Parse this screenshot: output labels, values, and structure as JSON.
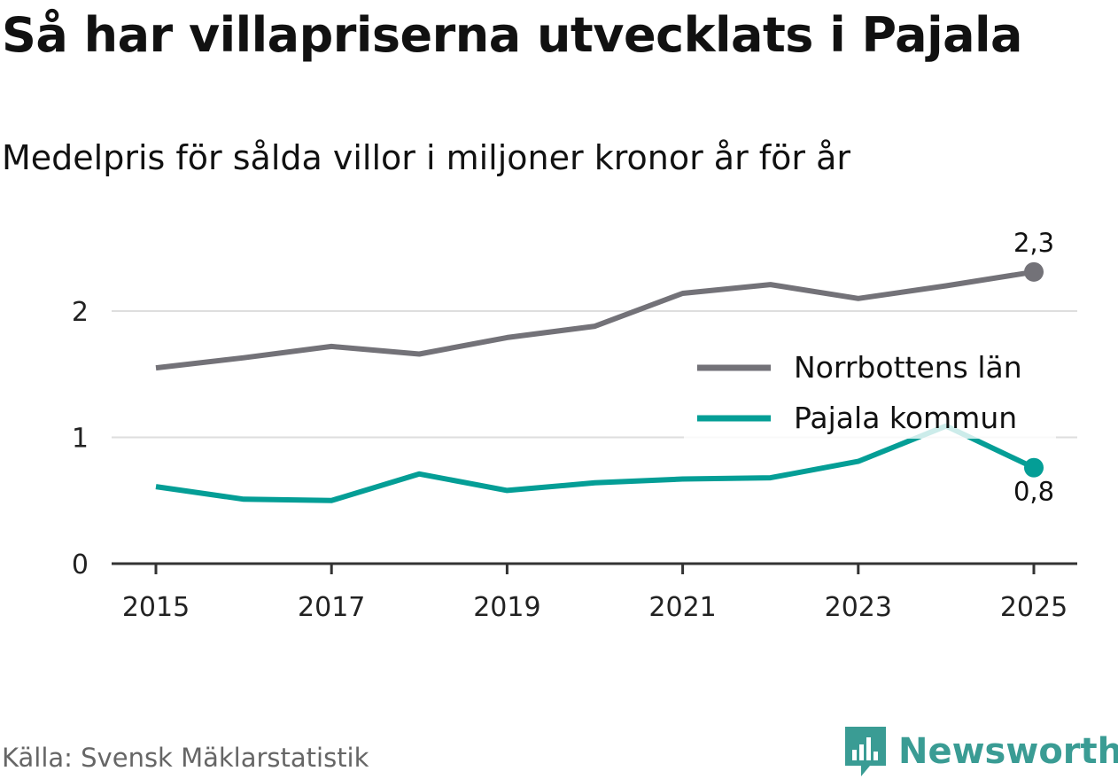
{
  "title": "Så har villapriserna utvecklats i Pajala",
  "subtitle": "Medelpris för sålda villor i miljoner kronor år för år",
  "source": "Källa: Svensk Mäklarstatistik",
  "brand": "Newsworthy",
  "colors": {
    "norrbotten": "#737278",
    "pajala": "#049e96",
    "grid": "#dedede",
    "axis": "#333333",
    "brand": "#3a9c94"
  },
  "chart_data": {
    "type": "line",
    "x": [
      2015,
      2016,
      2017,
      2018,
      2019,
      2020,
      2021,
      2022,
      2023,
      2024,
      2025
    ],
    "x_ticks": [
      "2015",
      "2017",
      "2019",
      "2021",
      "2023",
      "2025"
    ],
    "y_ticks": [
      "0",
      "1",
      "2"
    ],
    "ylim": [
      0,
      2.5
    ],
    "series": [
      {
        "name": "Norrbottens län",
        "values": [
          1.55,
          1.63,
          1.72,
          1.66,
          1.79,
          1.88,
          2.14,
          2.21,
          2.1,
          2.2,
          2.31
        ],
        "end_label": "2,3"
      },
      {
        "name": "Pajala kommun",
        "values": [
          0.61,
          0.51,
          0.5,
          0.71,
          0.58,
          0.64,
          0.67,
          0.68,
          0.81,
          1.09,
          0.76
        ],
        "end_label": "0,8"
      }
    ],
    "legend": "right"
  }
}
